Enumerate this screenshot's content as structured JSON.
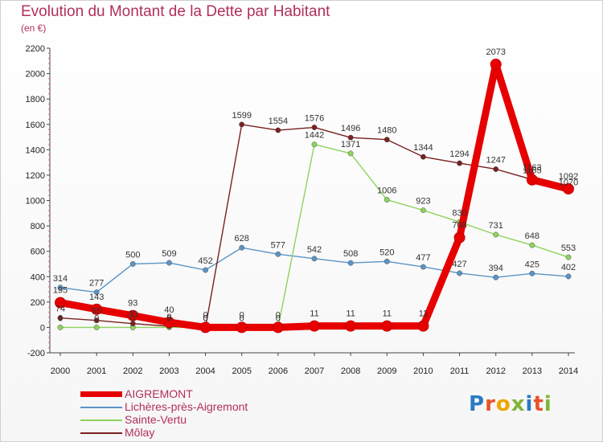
{
  "title": "Evolution du Montant de la Dette par Habitant",
  "subtitle": "(en €)",
  "brand": "Proxiti",
  "brand_letters": [
    {
      "char": "P",
      "color": "#2b7bc1"
    },
    {
      "char": "r",
      "color": "#e8542a"
    },
    {
      "char": "o",
      "color": "#f0a500"
    },
    {
      "char": "x",
      "color": "#7fb43a"
    },
    {
      "char": "i",
      "color": "#2b7bc1"
    },
    {
      "char": "t",
      "color": "#e8542a"
    },
    {
      "char": "i",
      "color": "#7fb43a"
    }
  ],
  "chart_data": {
    "type": "line",
    "title": "Evolution du Montant de la Dette par Habitant",
    "subtitle": "(en €)",
    "x": [
      "2000",
      "2001",
      "2002",
      "2003",
      "2004",
      "2005",
      "2006",
      "2007",
      "2008",
      "2009",
      "2010",
      "2011",
      "2012",
      "2013",
      "2014"
    ],
    "ylim": [
      -200,
      2200
    ],
    "yticks": [
      "-200",
      "0",
      "200",
      "400",
      "600",
      "800",
      "1000",
      "1200",
      "1400",
      "1600",
      "1800",
      "2000",
      "2200"
    ],
    "grid": false,
    "legend_position": "bottom-left",
    "series": [
      {
        "name": "AIGREMONT",
        "color": "#e60000",
        "emphasis": true,
        "values": [
          195,
          143,
          93,
          40,
          0,
          0,
          0,
          11,
          11,
          11,
          11,
          708,
          2073,
          1163,
          1092
        ],
        "labels": [
          "195",
          "143",
          "93",
          "40",
          "0",
          "0",
          "0",
          "11",
          "11",
          "11",
          "11",
          "708",
          "2073",
          "1163",
          "1092"
        ]
      },
      {
        "name": "Lichères-près-Aigremont",
        "color": "#5a94c6",
        "values": [
          314,
          277,
          500,
          509,
          452,
          628,
          577,
          542,
          508,
          520,
          477,
          427,
          394,
          425,
          402
        ],
        "labels": [
          "314",
          "277",
          "500",
          "509",
          "452",
          "628",
          "577",
          "542",
          "508",
          "520",
          "477",
          "427",
          "394",
          "425",
          "402"
        ]
      },
      {
        "name": "Sainte-Vertu",
        "color": "#8ed35c",
        "values": [
          0,
          0,
          0,
          0,
          0,
          0,
          0,
          1442,
          1371,
          1006,
          923,
          830,
          731,
          648,
          553
        ],
        "labels": [
          "0",
          "0",
          "0",
          "0",
          "0",
          "0",
          "0",
          "1442",
          "1371",
          "1006",
          "923",
          "830",
          "731",
          "648",
          "553"
        ]
      },
      {
        "name": "Môlay",
        "color": "#7a2020",
        "values": [
          74,
          55,
          30,
          9,
          0,
          1599,
          1554,
          1576,
          1496,
          1480,
          1344,
          1294,
          1247,
          1165,
          1070
        ],
        "labels": [
          "74",
          "55",
          "30",
          "9",
          "0",
          "1599",
          "1554",
          "1576",
          "1496",
          "1480",
          "1344",
          "1294",
          "1247",
          "1165",
          "1070"
        ]
      }
    ]
  }
}
